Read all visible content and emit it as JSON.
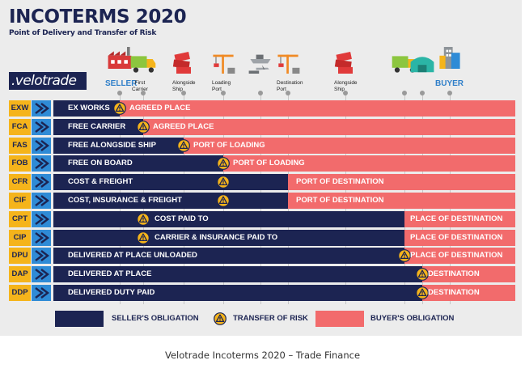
{
  "header": {
    "title": "INCOTERMS 2020",
    "subtitle": "Point of Delivery and Transfer of Risk",
    "logo": ".velotrade"
  },
  "stages": [
    {
      "label": "SELLER",
      "kind": "party",
      "icon": "factory-icon"
    },
    {
      "label": "First Carrier",
      "kind": "stage",
      "icon": "truck-icon"
    },
    {
      "label": "Alongside Ship",
      "kind": "stage",
      "icon": "container-stack-icon"
    },
    {
      "label": "Loading Port",
      "kind": "stage",
      "icon": "port-crane-icon"
    },
    {
      "label": "",
      "kind": "stage",
      "icon": "ship-plane-icon"
    },
    {
      "label": "Destination Port",
      "kind": "stage",
      "icon": "port-crane-icon"
    },
    {
      "label": "Alongside Ship",
      "kind": "stage",
      "icon": "container-stack-icon"
    },
    {
      "label": "",
      "kind": "stage",
      "icon": "truck-icon"
    },
    {
      "label": "",
      "kind": "stage",
      "icon": "warehouse-icon"
    },
    {
      "label": "BUYER",
      "kind": "party",
      "icon": "building-icon"
    }
  ],
  "terms": [
    {
      "code": "EXW",
      "name": "EX WORKS",
      "buyer_label": "AGREED PLACE",
      "seller_end": 0,
      "risk": 0
    },
    {
      "code": "FCA",
      "name": "FREE CARRIER",
      "buyer_label": "AGREED PLACE",
      "seller_end": 1,
      "risk": 1
    },
    {
      "code": "FAS",
      "name": "FREE ALONGSIDE SHIP",
      "buyer_label": "PORT OF LOADING",
      "seller_end": 2,
      "risk": 2
    },
    {
      "code": "FOB",
      "name": "FREE ON BOARD",
      "buyer_label": "PORT OF LOADING",
      "seller_end": 3,
      "risk": 3
    },
    {
      "code": "CFR",
      "name": "COST & FREIGHT",
      "buyer_label": "PORT OF DESTINATION",
      "seller_end": 5,
      "risk": 3
    },
    {
      "code": "CIF",
      "name": "COST, INSURANCE & FREIGHT",
      "buyer_label": "PORT OF DESTINATION",
      "seller_end": 5,
      "risk": 3
    },
    {
      "code": "CPT",
      "name": "COST PAID TO",
      "buyer_label": "PLACE OF DESTINATION",
      "seller_end": 7,
      "risk": 1
    },
    {
      "code": "CIP",
      "name": "CARRIER & INSURANCE PAID TO",
      "buyer_label": "PLACE OF DESTINATION",
      "seller_end": 7,
      "risk": 1
    },
    {
      "code": "DPU",
      "name": "DELIVERED AT PLACE UNLOADED",
      "buyer_label": "PLACE OF DESTINATION",
      "seller_end": 7,
      "risk": 7
    },
    {
      "code": "DAP",
      "name": "DELIVERED AT PLACE",
      "buyer_label": "DESTINATION",
      "seller_end": 8,
      "risk": 8
    },
    {
      "code": "DDP",
      "name": "DELIVERED DUTY PAID",
      "buyer_label": "DESTINATION",
      "seller_end": 8,
      "risk": 8
    }
  ],
  "legend": {
    "seller": "SELLER'S OBLIGATION",
    "risk": "TRANSFER OF RISK",
    "buyer": "BUYER'S OBLIGATION"
  },
  "colors": {
    "seller": "#1c2452",
    "buyer": "#f26b6c",
    "code": "#f5b41b",
    "arrow": "#2f8bd6",
    "risk": "#f5b41b",
    "accent": "#2f7fc9"
  },
  "caption": "Velotrade Incoterms 2020 – Trade Finance"
}
